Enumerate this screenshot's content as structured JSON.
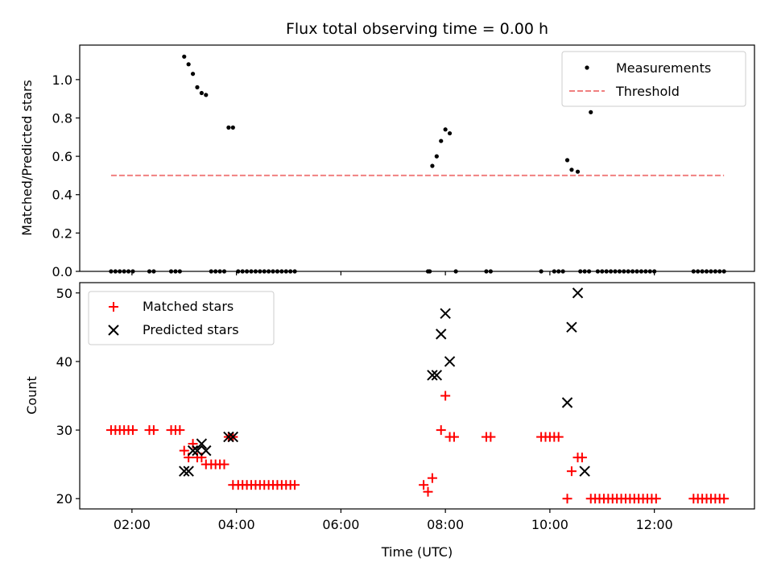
{
  "colors": {
    "measurement": "#000000",
    "threshold": "#f08080",
    "matched": "#ff0000",
    "predicted": "#000000"
  },
  "chart_data": [
    {
      "type": "scatter",
      "title": "Flux total observing time = 0.00 h",
      "xlabel": "",
      "ylabel": "Matched/Predicted stars",
      "xlim": [
        "01:00",
        "13:55"
      ],
      "ylim": [
        0,
        1.18
      ],
      "xticks": [
        "02:00",
        "04:00",
        "06:00",
        "08:00",
        "10:00",
        "12:00"
      ],
      "yticks": [
        "0.0",
        "0.2",
        "0.4",
        "0.6",
        "0.8",
        "1.0"
      ],
      "grid": false,
      "legend_position": "top-right",
      "series": [
        {
          "name": "Measurements",
          "marker": "dot",
          "points": [
            [
              "01:36",
              0
            ],
            [
              "01:41",
              0
            ],
            [
              "01:46",
              0
            ],
            [
              "01:51",
              0
            ],
            [
              "01:56",
              0
            ],
            [
              "02:01",
              0
            ],
            [
              "02:20",
              0
            ],
            [
              "02:25",
              0
            ],
            [
              "02:45",
              0
            ],
            [
              "02:50",
              0
            ],
            [
              "02:55",
              0
            ],
            [
              "03:00",
              1.12
            ],
            [
              "03:05",
              1.08
            ],
            [
              "03:10",
              1.03
            ],
            [
              "03:15",
              0.96
            ],
            [
              "03:20",
              0.93
            ],
            [
              "03:25",
              0.92
            ],
            [
              "03:31",
              0
            ],
            [
              "03:36",
              0
            ],
            [
              "03:41",
              0
            ],
            [
              "03:46",
              0
            ],
            [
              "03:51",
              0.75
            ],
            [
              "03:56",
              0.75
            ],
            [
              "04:02",
              0
            ],
            [
              "04:07",
              0
            ],
            [
              "04:12",
              0
            ],
            [
              "04:17",
              0
            ],
            [
              "04:22",
              0
            ],
            [
              "04:27",
              0
            ],
            [
              "04:32",
              0
            ],
            [
              "04:37",
              0
            ],
            [
              "04:42",
              0
            ],
            [
              "04:47",
              0
            ],
            [
              "04:52",
              0
            ],
            [
              "04:57",
              0
            ],
            [
              "05:02",
              0
            ],
            [
              "05:07",
              0
            ],
            [
              "07:40",
              0
            ],
            [
              "07:42",
              0
            ],
            [
              "07:45",
              0.55
            ],
            [
              "07:50",
              0.6
            ],
            [
              "07:55",
              0.68
            ],
            [
              "08:00",
              0.74
            ],
            [
              "08:05",
              0.72
            ],
            [
              "08:12",
              0
            ],
            [
              "08:47",
              0
            ],
            [
              "08:52",
              0
            ],
            [
              "09:50",
              0
            ],
            [
              "10:05",
              0
            ],
            [
              "10:10",
              0
            ],
            [
              "10:15",
              0
            ],
            [
              "10:20",
              0.58
            ],
            [
              "10:25",
              0.53
            ],
            [
              "10:32",
              0.52
            ],
            [
              "10:35",
              0
            ],
            [
              "10:40",
              0
            ],
            [
              "10:45",
              0
            ],
            [
              "10:47",
              0.83
            ],
            [
              "10:55",
              0
            ],
            [
              "11:00",
              0
            ],
            [
              "11:05",
              0
            ],
            [
              "11:10",
              0
            ],
            [
              "11:15",
              0
            ],
            [
              "11:20",
              0
            ],
            [
              "11:25",
              0
            ],
            [
              "11:30",
              0
            ],
            [
              "11:35",
              0
            ],
            [
              "11:40",
              0
            ],
            [
              "11:45",
              0
            ],
            [
              "11:50",
              0
            ],
            [
              "11:55",
              0
            ],
            [
              "12:00",
              0
            ],
            [
              "12:45",
              0
            ],
            [
              "12:50",
              0
            ],
            [
              "12:55",
              0
            ],
            [
              "13:00",
              0
            ],
            [
              "13:05",
              0
            ],
            [
              "13:10",
              0
            ],
            [
              "13:15",
              0
            ],
            [
              "13:20",
              0
            ]
          ]
        },
        {
          "name": "Threshold",
          "marker": "dashed-line",
          "points": [
            [
              "01:36",
              0.5
            ],
            [
              "13:20",
              0.5
            ]
          ]
        }
      ]
    },
    {
      "type": "scatter",
      "title": "",
      "xlabel": "Time (UTC)",
      "ylabel": "Count",
      "xlim": [
        "01:00",
        "13:55"
      ],
      "ylim": [
        18.5,
        51.5
      ],
      "xticks": [
        "02:00",
        "04:00",
        "06:00",
        "08:00",
        "10:00",
        "12:00"
      ],
      "yticks": [
        "20",
        "30",
        "40",
        "50"
      ],
      "grid": false,
      "legend_position": "top-left",
      "series": [
        {
          "name": "Matched stars",
          "marker": "plus",
          "points": [
            [
              "01:36",
              30
            ],
            [
              "01:41",
              30
            ],
            [
              "01:46",
              30
            ],
            [
              "01:51",
              30
            ],
            [
              "01:56",
              30
            ],
            [
              "02:01",
              30
            ],
            [
              "02:20",
              30
            ],
            [
              "02:25",
              30
            ],
            [
              "02:45",
              30
            ],
            [
              "02:50",
              30
            ],
            [
              "02:55",
              30
            ],
            [
              "03:00",
              27
            ],
            [
              "03:05",
              26
            ],
            [
              "03:10",
              28
            ],
            [
              "03:15",
              26
            ],
            [
              "03:20",
              26
            ],
            [
              "03:25",
              25
            ],
            [
              "03:31",
              25
            ],
            [
              "03:36",
              25
            ],
            [
              "03:41",
              25
            ],
            [
              "03:46",
              25
            ],
            [
              "03:51",
              29
            ],
            [
              "03:56",
              29
            ],
            [
              "03:56",
              22
            ],
            [
              "04:02",
              22
            ],
            [
              "04:07",
              22
            ],
            [
              "04:12",
              22
            ],
            [
              "04:17",
              22
            ],
            [
              "04:22",
              22
            ],
            [
              "04:27",
              22
            ],
            [
              "04:32",
              22
            ],
            [
              "04:37",
              22
            ],
            [
              "04:42",
              22
            ],
            [
              "04:47",
              22
            ],
            [
              "04:52",
              22
            ],
            [
              "04:57",
              22
            ],
            [
              "05:02",
              22
            ],
            [
              "05:07",
              22
            ],
            [
              "07:35",
              22
            ],
            [
              "07:40",
              21
            ],
            [
              "07:45",
              23
            ],
            [
              "07:55",
              30
            ],
            [
              "08:00",
              35
            ],
            [
              "08:05",
              29
            ],
            [
              "08:10",
              29
            ],
            [
              "08:47",
              29
            ],
            [
              "08:52",
              29
            ],
            [
              "09:50",
              29
            ],
            [
              "09:55",
              29
            ],
            [
              "10:00",
              29
            ],
            [
              "10:05",
              29
            ],
            [
              "10:10",
              29
            ],
            [
              "10:20",
              20
            ],
            [
              "10:25",
              24
            ],
            [
              "10:32",
              26
            ],
            [
              "10:37",
              26
            ],
            [
              "10:47",
              20
            ],
            [
              "10:52",
              20
            ],
            [
              "10:57",
              20
            ],
            [
              "11:02",
              20
            ],
            [
              "11:07",
              20
            ],
            [
              "11:12",
              20
            ],
            [
              "11:17",
              20
            ],
            [
              "11:22",
              20
            ],
            [
              "11:27",
              20
            ],
            [
              "11:32",
              20
            ],
            [
              "11:37",
              20
            ],
            [
              "11:42",
              20
            ],
            [
              "11:47",
              20
            ],
            [
              "11:52",
              20
            ],
            [
              "11:57",
              20
            ],
            [
              "12:02",
              20
            ],
            [
              "12:45",
              20
            ],
            [
              "12:50",
              20
            ],
            [
              "12:55",
              20
            ],
            [
              "13:00",
              20
            ],
            [
              "13:05",
              20
            ],
            [
              "13:10",
              20
            ],
            [
              "13:15",
              20
            ],
            [
              "13:20",
              20
            ]
          ]
        },
        {
          "name": "Predicted stars",
          "marker": "cross",
          "points": [
            [
              "03:00",
              24
            ],
            [
              "03:05",
              24
            ],
            [
              "03:10",
              27
            ],
            [
              "03:15",
              27
            ],
            [
              "03:20",
              28
            ],
            [
              "03:25",
              27
            ],
            [
              "03:51",
              29
            ],
            [
              "03:56",
              29
            ],
            [
              "07:45",
              38
            ],
            [
              "07:50",
              38
            ],
            [
              "07:55",
              44
            ],
            [
              "08:00",
              47
            ],
            [
              "08:05",
              40
            ],
            [
              "10:20",
              34
            ],
            [
              "10:25",
              45
            ],
            [
              "10:32",
              50
            ],
            [
              "10:40",
              24
            ]
          ]
        }
      ]
    }
  ]
}
